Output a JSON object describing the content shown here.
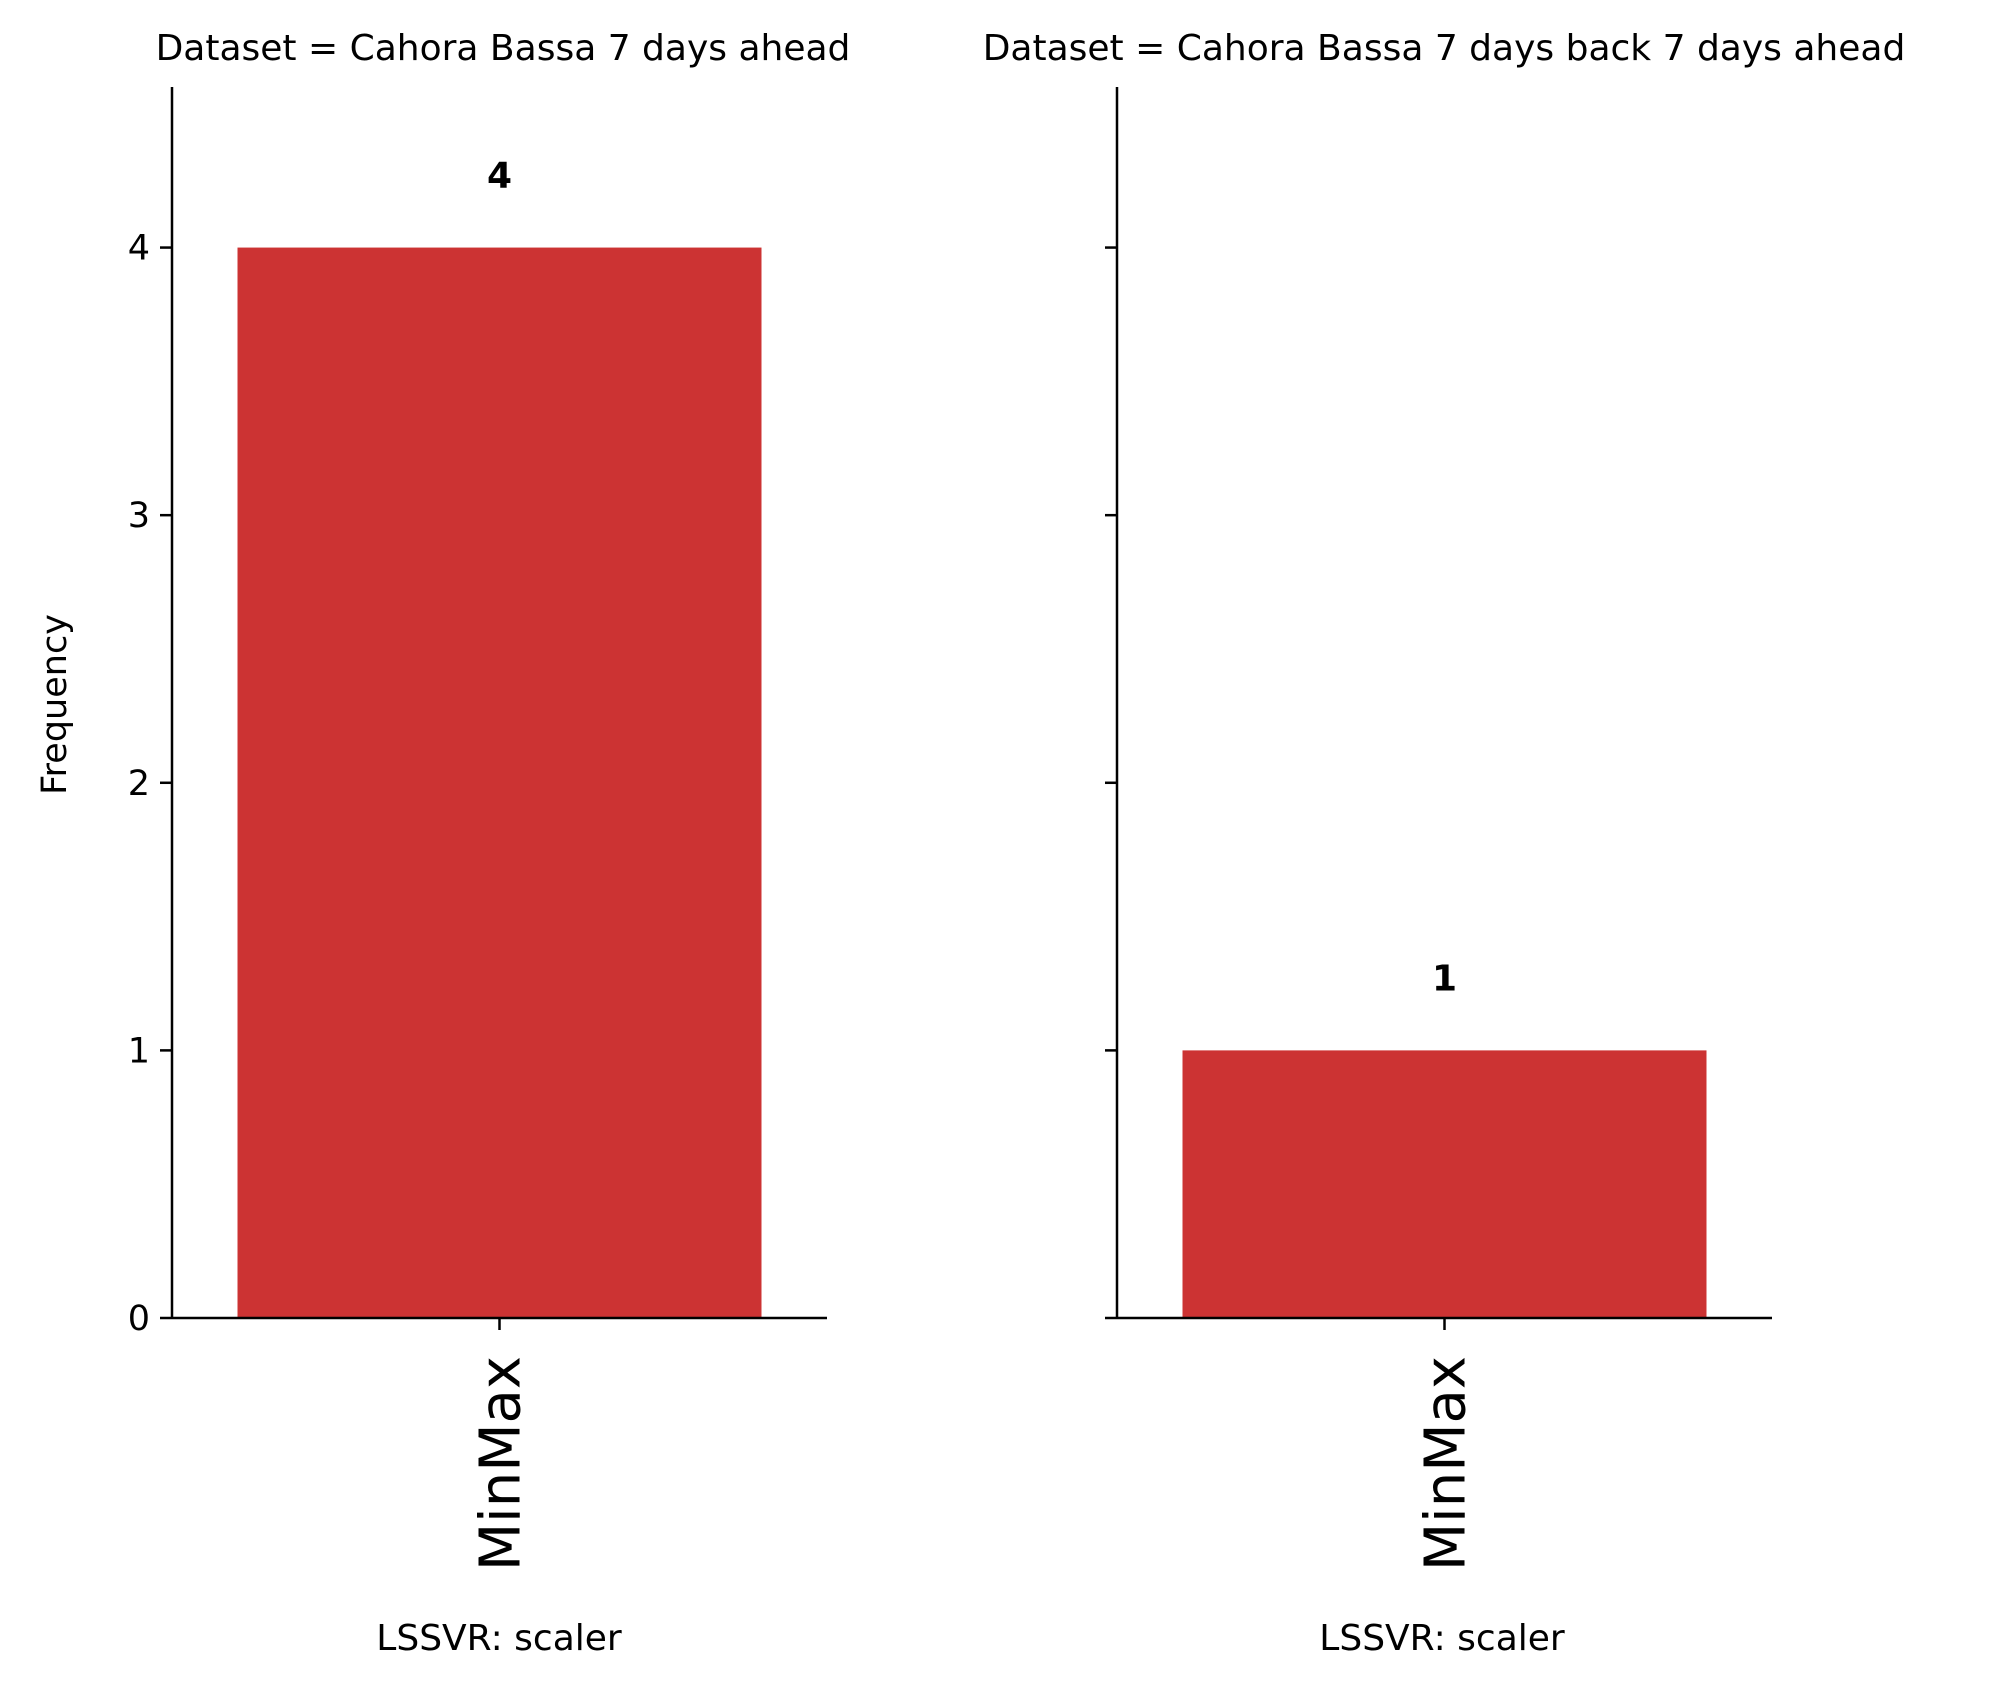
{
  "chart_data": [
    {
      "type": "bar",
      "title": "Dataset = Cahora Bassa 7 days ahead",
      "categories": [
        "MinMax"
      ],
      "values": [
        4
      ],
      "data_labels": [
        "4"
      ],
      "xlabel": "LSSVR: scaler",
      "ylabel": "Frequency",
      "ylim": [
        0,
        4.6
      ],
      "yticks": [
        "0",
        "1",
        "2",
        "3",
        "4"
      ],
      "grid": false,
      "color": "#cc3333"
    },
    {
      "type": "bar",
      "title": "Dataset = Cahora Bassa 7 days back 7 days ahead",
      "categories": [
        "MinMax"
      ],
      "values": [
        1
      ],
      "data_labels": [
        "1"
      ],
      "xlabel": "LSSVR: scaler",
      "ylabel": "",
      "ylim": [
        0,
        4.6
      ],
      "yticks": [],
      "grid": false,
      "color": "#cc3333"
    }
  ]
}
